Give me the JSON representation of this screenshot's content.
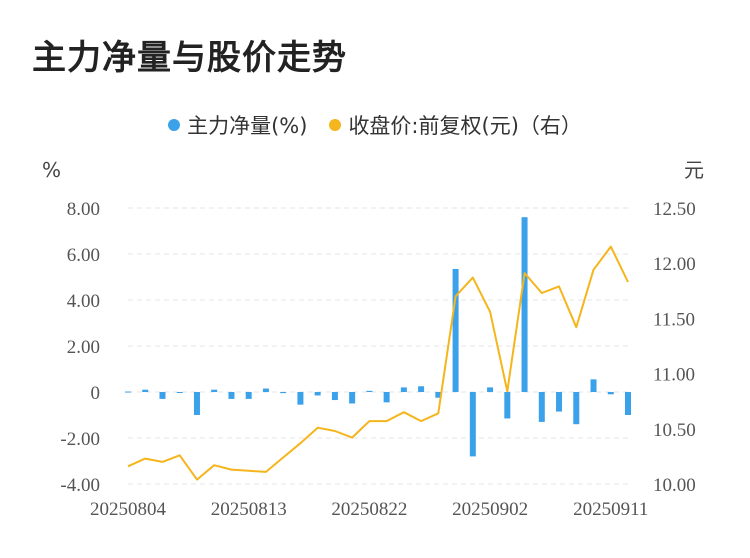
{
  "title": "主力净量与股价走势",
  "legend": {
    "series1": "主力净量(%)",
    "series2": "收盘价:前复权(元)（右）"
  },
  "colors": {
    "bar": "#3ba1ea",
    "line": "#f5b51c",
    "grid": "#e6e6e6"
  },
  "chart_data": {
    "type": "bar",
    "x_ticks": [
      "20250804",
      "20250813",
      "20250822",
      "20250902",
      "20250911"
    ],
    "left_axis": {
      "unit": "%",
      "ylim": [
        -4,
        8
      ],
      "ticks": [
        "8.00",
        "6.00",
        "4.00",
        "2.00",
        "0",
        "-2.00",
        "-4.00"
      ]
    },
    "right_axis": {
      "unit": "元",
      "ylim": [
        10,
        12.5
      ],
      "ticks": [
        "12.50",
        "12.00",
        "11.50",
        "11.00",
        "10.50",
        "10.00"
      ]
    },
    "series": [
      {
        "name": "主力净量(%)",
        "type": "bar",
        "values": [
          0.02,
          0.1,
          -0.3,
          0,
          -1.0,
          0.1,
          -0.3,
          -0.3,
          0.15,
          -0.05,
          -0.55,
          -0.15,
          -0.35,
          -0.5,
          0.05,
          -0.45,
          0.2,
          0.25,
          -0.25,
          5.35,
          -2.8,
          0.2,
          -1.15,
          7.6,
          -1.3,
          -0.85,
          -1.4,
          0.55,
          -0.1,
          -1.0
        ]
      },
      {
        "name": "收盘价:前复权(元)（右）",
        "type": "line",
        "values": [
          10.16,
          10.23,
          10.2,
          10.26,
          10.04,
          10.17,
          10.13,
          10.12,
          10.11,
          10.24,
          10.37,
          10.51,
          10.48,
          10.42,
          10.57,
          10.57,
          10.65,
          10.57,
          10.64,
          11.7,
          11.87,
          11.56,
          10.84,
          11.91,
          11.73,
          11.79,
          11.42,
          11.94,
          12.15,
          11.83
        ]
      }
    ]
  }
}
